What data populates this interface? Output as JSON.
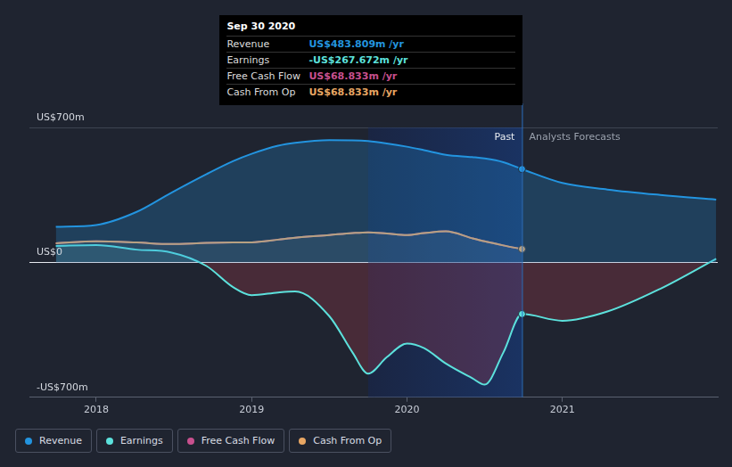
{
  "chart_data": {
    "type": "line",
    "x": [
      2017.74,
      2018.0,
      2018.26,
      2018.48,
      2018.71,
      2018.88,
      2019.0,
      2019.17,
      2019.28,
      2019.5,
      2019.65,
      2019.75,
      2019.87,
      2020.0,
      2020.11,
      2020.25,
      2020.42,
      2020.5,
      2020.62,
      2020.74,
      2021.0,
      2021.29,
      2021.63,
      2021.99
    ],
    "series": [
      {
        "name": "Revenue",
        "color": "#2394df",
        "values": [
          184,
          194,
          262,
          360,
          458,
          525,
          563,
          605,
          620,
          634,
          633,
          629,
          617,
          600,
          582,
          558,
          546,
          539,
          520,
          484,
          412,
          378,
          350,
          326
        ]
      },
      {
        "name": "Earnings",
        "color": "#5ce1dc",
        "values": [
          85,
          90,
          66,
          52,
          -19,
          -128,
          -170,
          -156,
          -151,
          -279,
          -468,
          -577,
          -492,
          -421,
          -445,
          -525,
          -601,
          -634,
          -468,
          -268,
          -303,
          -255,
          -137,
          19
        ]
      },
      {
        "name": "Free Cash Flow",
        "color": "#c8508e",
        "values": [
          99,
          109,
          103,
          95,
          101,
          103,
          104,
          118,
          128,
          142,
          152,
          156,
          150,
          142,
          152,
          161,
          125,
          109,
          88,
          69,
          null,
          null,
          null,
          null
        ]
      },
      {
        "name": "Cash From Op",
        "color": "#e8a663",
        "values": [
          99,
          109,
          103,
          95,
          101,
          103,
          104,
          118,
          128,
          142,
          152,
          156,
          150,
          142,
          152,
          161,
          125,
          109,
          88,
          69,
          null,
          null,
          null,
          null
        ]
      }
    ],
    "xlim": [
      2017.57,
      2022
    ],
    "xticks": [
      2018,
      2019,
      2020,
      2021
    ],
    "ylim": [
      -700,
      700
    ],
    "yticks": [
      {
        "value": -700,
        "label": "-US$700m"
      },
      {
        "value": 0,
        "label": "US$0"
      },
      {
        "value": 700,
        "label": "US$700m"
      }
    ],
    "grid": true,
    "legend": "bottom",
    "shaded_range": [
      2019.75,
      2020.74
    ],
    "annotations": [
      "Past",
      "Analysts Forecasts"
    ],
    "tooltip": {
      "x": 2020.74,
      "title": "Sep 30 2020",
      "rows": [
        {
          "label": "Revenue",
          "value": "US$483.809m /yr"
        },
        {
          "label": "Earnings",
          "value": "-US$267.672m /yr"
        },
        {
          "label": "Free Cash Flow",
          "value": "US$68.833m /yr"
        },
        {
          "label": "Cash From Op",
          "value": "US$68.833m /yr"
        }
      ]
    }
  }
}
